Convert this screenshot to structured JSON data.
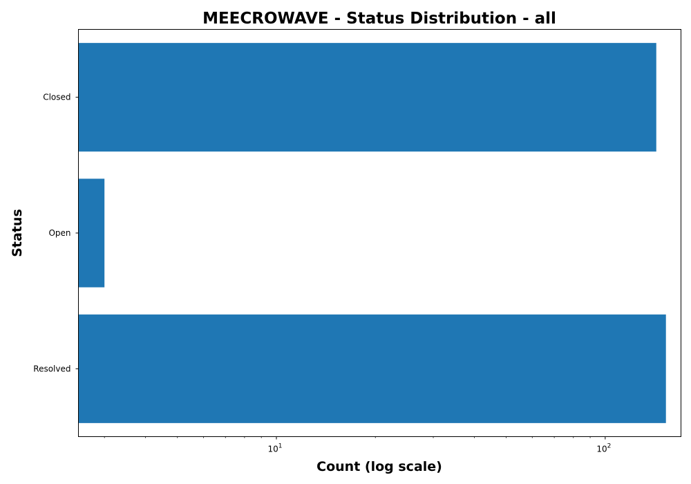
{
  "chart_data": {
    "type": "bar",
    "orientation": "horizontal",
    "title": "MEECROWAVE - Status Distribution - all",
    "xlabel": "Count (log scale)",
    "ylabel": "Status",
    "x_scale": "log",
    "xlim": [
      2.5,
      170
    ],
    "categories": [
      "Closed",
      "Open",
      "Resolved"
    ],
    "values": [
      143,
      3,
      153
    ],
    "x_ticks": [
      {
        "value": 10,
        "base": "10",
        "exp": "1"
      },
      {
        "value": 100,
        "base": "10",
        "exp": "2"
      }
    ],
    "bar_color": "#1f77b4",
    "grid": false,
    "legend": "none"
  }
}
